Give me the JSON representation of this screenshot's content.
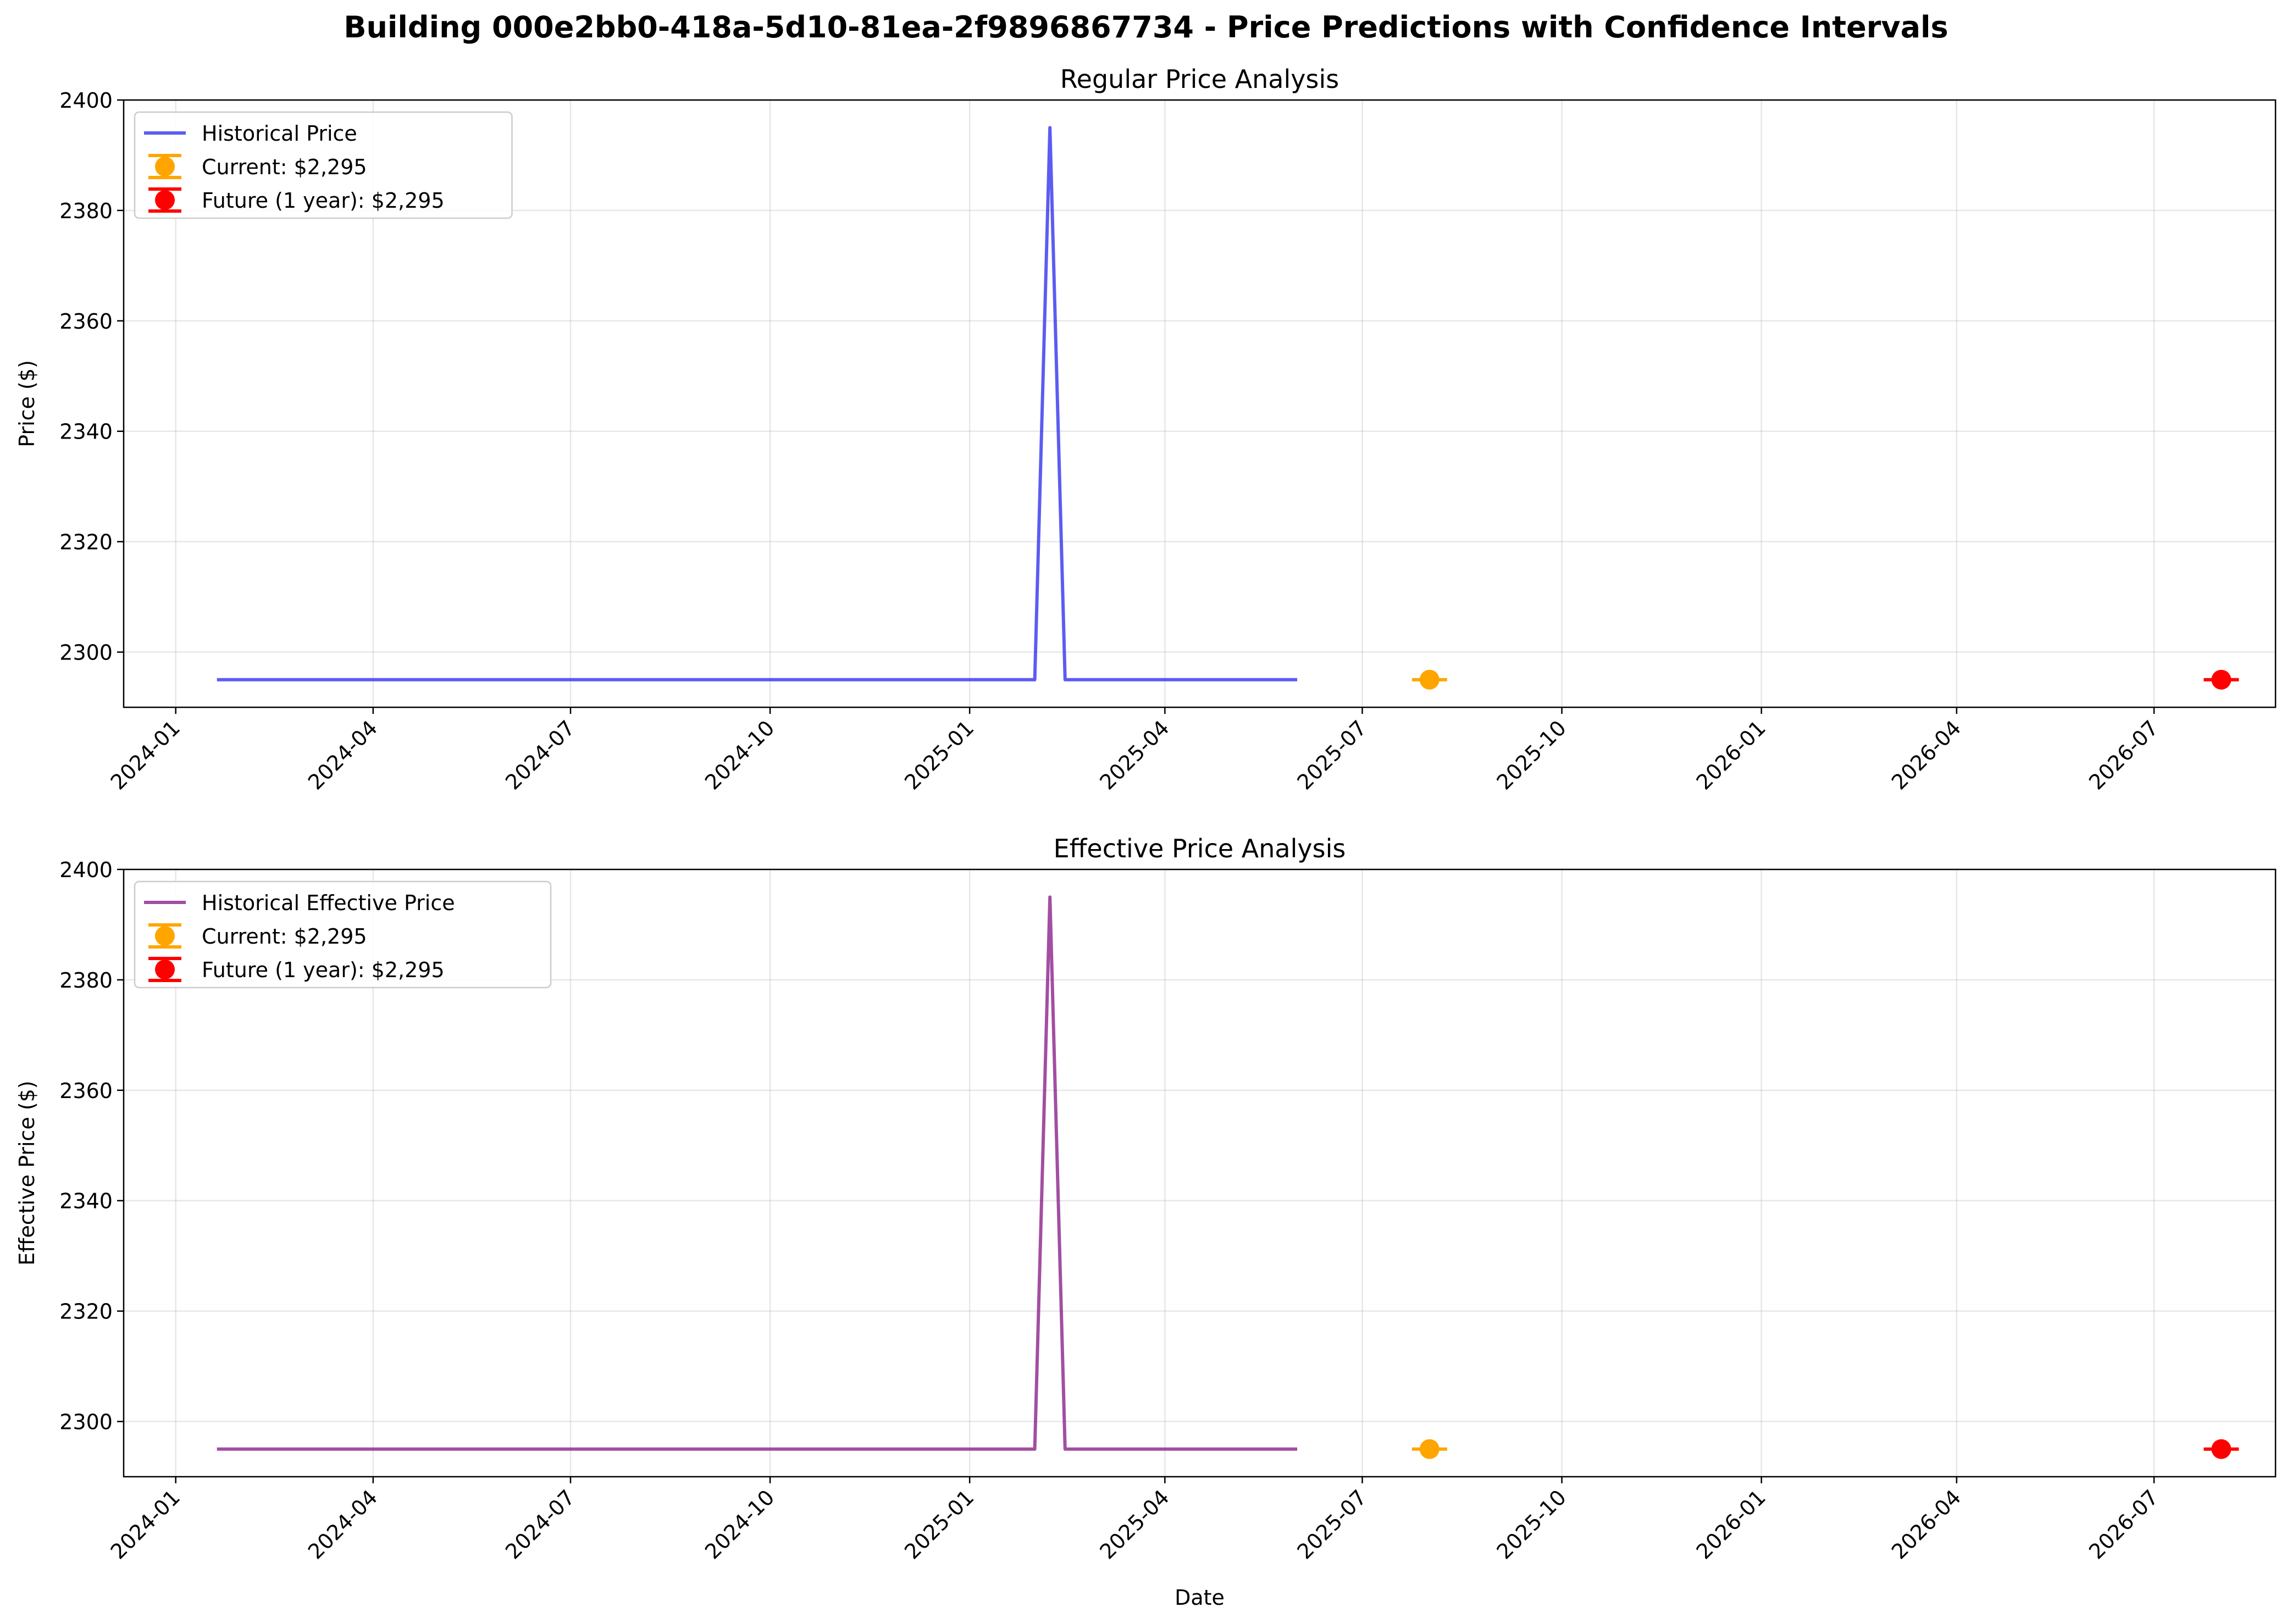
{
  "figure": {
    "title": "Building 000e2bb0-418a-5d10-81ea-2f9896867734 - Price Predictions with Confidence Intervals"
  },
  "chart_data": [
    {
      "type": "line",
      "title": "Regular Price Analysis",
      "xlabel": "",
      "ylabel": "Price ($)",
      "ylim": [
        2290,
        2400
      ],
      "xlim": [
        "2023-12-08",
        "2026-08-26"
      ],
      "xticks": [
        "2024-01",
        "2024-04",
        "2024-07",
        "2024-10",
        "2025-01",
        "2025-04",
        "2025-07",
        "2025-10",
        "2026-01",
        "2026-04",
        "2026-07"
      ],
      "yticks": [
        2300,
        2320,
        2340,
        2360,
        2380,
        2400
      ],
      "grid": true,
      "legend_position": "top-left",
      "series": [
        {
          "name": "Historical Price",
          "color": "#3333ee",
          "x": [
            "2024-01-20",
            "2025-01-31",
            "2025-02-07",
            "2025-02-14",
            "2025-06-01"
          ],
          "y": [
            2295,
            2295,
            2395,
            2295,
            2295
          ]
        }
      ],
      "points": [
        {
          "name": "Current: $2,295",
          "date": "2025-08-01",
          "value": 2295,
          "color": "#ffa500",
          "error_low": 2295,
          "error_high": 2295
        },
        {
          "name": "Future (1 year): $2,295",
          "date": "2026-08-01",
          "value": 2295,
          "color": "#ff0000",
          "error_low": 2295,
          "error_high": 2295
        }
      ]
    },
    {
      "type": "line",
      "title": "Effective Price Analysis",
      "xlabel": "Date",
      "ylabel": "Effective Price ($)",
      "ylim": [
        2290,
        2400
      ],
      "xlim": [
        "2023-12-08",
        "2026-08-26"
      ],
      "xticks": [
        "2024-01",
        "2024-04",
        "2024-07",
        "2024-10",
        "2025-01",
        "2025-04",
        "2025-07",
        "2025-10",
        "2026-01",
        "2026-04",
        "2026-07"
      ],
      "yticks": [
        2300,
        2320,
        2340,
        2360,
        2380,
        2400
      ],
      "grid": true,
      "legend_position": "top-left",
      "series": [
        {
          "name": "Historical Effective Price",
          "color": "#8b228b",
          "x": [
            "2024-01-20",
            "2025-01-31",
            "2025-02-07",
            "2025-02-14",
            "2025-06-01"
          ],
          "y": [
            2295,
            2295,
            2395,
            2295,
            2295
          ]
        }
      ],
      "points": [
        {
          "name": "Current: $2,295",
          "date": "2025-08-01",
          "value": 2295,
          "color": "#ffa500",
          "error_low": 2295,
          "error_high": 2295
        },
        {
          "name": "Future (1 year): $2,295",
          "date": "2026-08-01",
          "value": 2295,
          "color": "#ff0000",
          "error_low": 2295,
          "error_high": 2295
        }
      ]
    }
  ]
}
